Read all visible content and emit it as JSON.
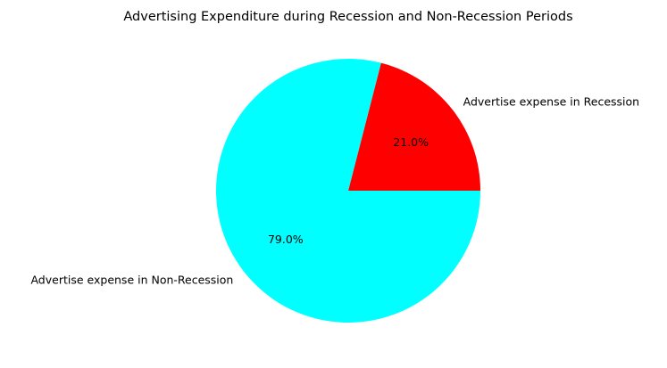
{
  "chart_data": {
    "type": "pie",
    "title": "Advertising Expenditure during Recession and Non-Recession Periods",
    "slices": [
      {
        "label": "Advertise expense in Recession",
        "value": 21.0,
        "pct_label": "21.0%",
        "color": "#ff0000"
      },
      {
        "label": "Advertise expense in Non-Recession",
        "value": 79.0,
        "pct_label": "79.0%",
        "color": "#00ffff"
      }
    ],
    "start_angle_deg": 0,
    "direction": "counterclockwise"
  }
}
